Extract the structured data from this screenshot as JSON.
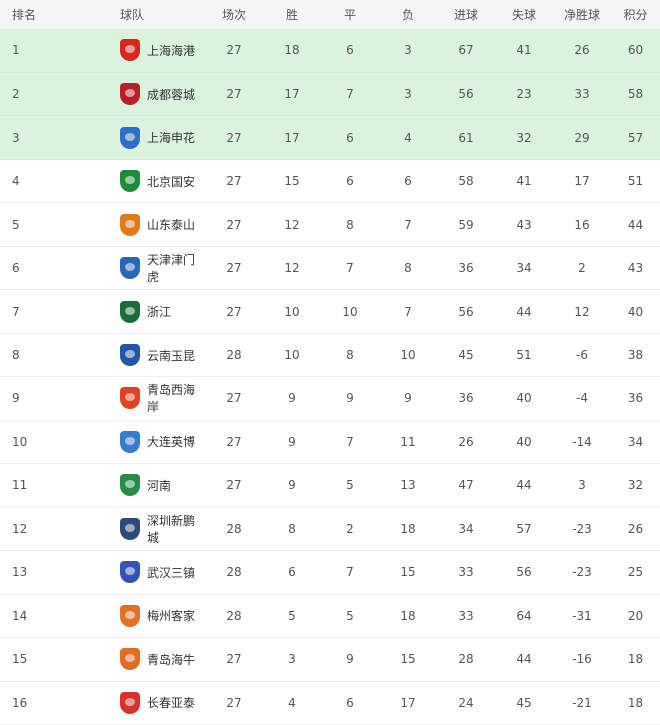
{
  "headers": [
    "排名",
    "球队",
    "场次",
    "胜",
    "平",
    "负",
    "进球",
    "失球",
    "净胜球",
    "积分"
  ],
  "highlight_color": "#dbf2df",
  "rows": [
    {
      "rank": "1",
      "team": "上海海港",
      "logo_color": "#d6281e",
      "p": "27",
      "w": "18",
      "d": "6",
      "l": "3",
      "gf": "67",
      "ga": "41",
      "gd": "26",
      "pts": "60"
    },
    {
      "rank": "2",
      "team": "成都蓉城",
      "logo_color": "#b5202a",
      "p": "27",
      "w": "17",
      "d": "7",
      "l": "3",
      "gf": "56",
      "ga": "23",
      "gd": "33",
      "pts": "58"
    },
    {
      "rank": "3",
      "team": "上海申花",
      "logo_color": "#2f6ec4",
      "p": "27",
      "w": "17",
      "d": "6",
      "l": "4",
      "gf": "61",
      "ga": "32",
      "gd": "29",
      "pts": "57"
    },
    {
      "rank": "4",
      "team": "北京国安",
      "logo_color": "#1f8a3a",
      "p": "27",
      "w": "15",
      "d": "6",
      "l": "6",
      "gf": "58",
      "ga": "41",
      "gd": "17",
      "pts": "51"
    },
    {
      "rank": "5",
      "team": "山东泰山",
      "logo_color": "#e07a1c",
      "p": "27",
      "w": "12",
      "d": "8",
      "l": "7",
      "gf": "59",
      "ga": "43",
      "gd": "16",
      "pts": "44"
    },
    {
      "rank": "6",
      "team": "天津津门虎",
      "logo_color": "#2a66b8",
      "p": "27",
      "w": "12",
      "d": "7",
      "l": "8",
      "gf": "36",
      "ga": "34",
      "gd": "2",
      "pts": "43"
    },
    {
      "rank": "7",
      "team": "浙江",
      "logo_color": "#1d6b3a",
      "p": "27",
      "w": "10",
      "d": "10",
      "l": "7",
      "gf": "56",
      "ga": "44",
      "gd": "12",
      "pts": "40"
    },
    {
      "rank": "8",
      "team": "云南玉昆",
      "logo_color": "#2456a6",
      "p": "28",
      "w": "10",
      "d": "8",
      "l": "10",
      "gf": "45",
      "ga": "51",
      "gd": "-6",
      "pts": "38"
    },
    {
      "rank": "9",
      "team": "青岛西海岸",
      "logo_color": "#e0402a",
      "p": "27",
      "w": "9",
      "d": "9",
      "l": "9",
      "gf": "36",
      "ga": "40",
      "gd": "-4",
      "pts": "36"
    },
    {
      "rank": "10",
      "team": "大连英博",
      "logo_color": "#3a7bd0",
      "p": "27",
      "w": "9",
      "d": "7",
      "l": "11",
      "gf": "26",
      "ga": "40",
      "gd": "-14",
      "pts": "34"
    },
    {
      "rank": "11",
      "team": "河南",
      "logo_color": "#2a8a4a",
      "p": "27",
      "w": "9",
      "d": "5",
      "l": "13",
      "gf": "47",
      "ga": "44",
      "gd": "3",
      "pts": "32"
    },
    {
      "rank": "12",
      "team": "深圳新鹏城",
      "logo_color": "#2c4a78",
      "p": "28",
      "w": "8",
      "d": "2",
      "l": "18",
      "gf": "34",
      "ga": "57",
      "gd": "-23",
      "pts": "26"
    },
    {
      "rank": "13",
      "team": "武汉三镇",
      "logo_color": "#3552b8",
      "p": "28",
      "w": "6",
      "d": "7",
      "l": "15",
      "gf": "33",
      "ga": "56",
      "gd": "-23",
      "pts": "25"
    },
    {
      "rank": "14",
      "team": "梅州客家",
      "logo_color": "#e0702a",
      "p": "28",
      "w": "5",
      "d": "5",
      "l": "18",
      "gf": "33",
      "ga": "64",
      "gd": "-31",
      "pts": "20"
    },
    {
      "rank": "15",
      "team": "青岛海牛",
      "logo_color": "#e46a2a",
      "p": "27",
      "w": "3",
      "d": "9",
      "l": "15",
      "gf": "28",
      "ga": "44",
      "gd": "-16",
      "pts": "18"
    },
    {
      "rank": "16",
      "team": "长春亚泰",
      "logo_color": "#d8302a",
      "p": "27",
      "w": "4",
      "d": "6",
      "l": "17",
      "gf": "24",
      "ga": "45",
      "gd": "-21",
      "pts": "18"
    }
  ]
}
